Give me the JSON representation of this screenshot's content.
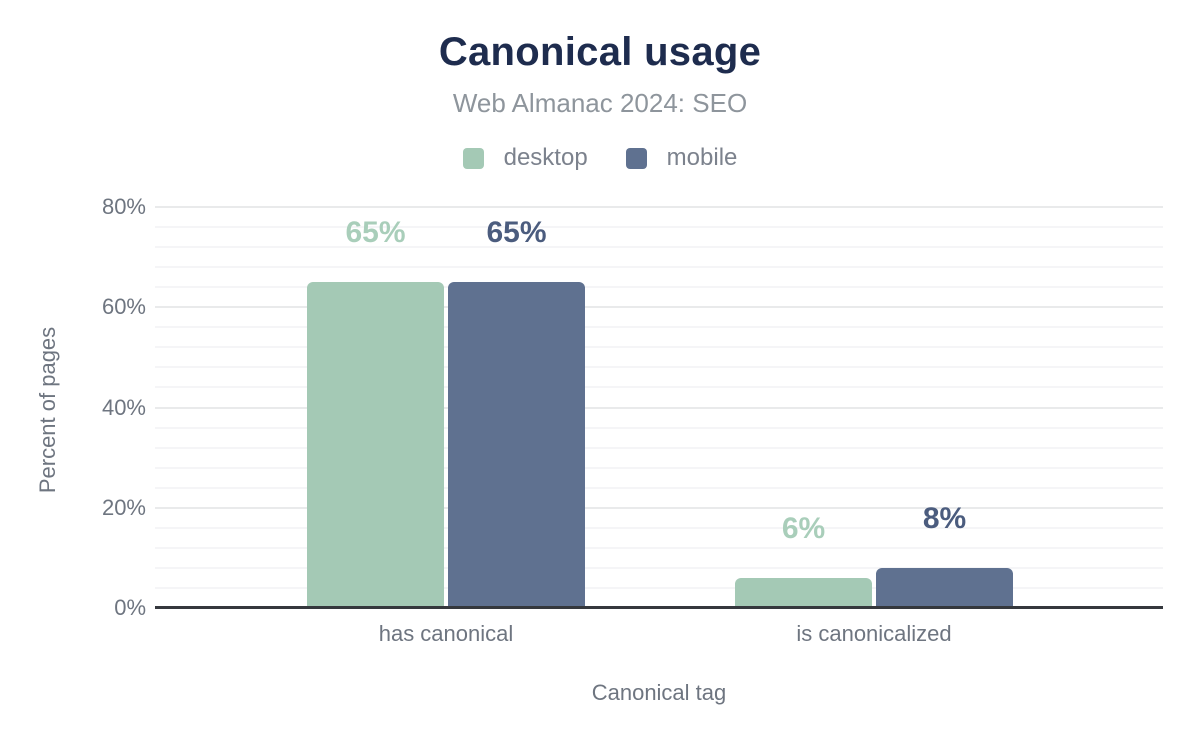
{
  "colors": {
    "title_text": "#1e2c4e",
    "subtitle_text": "#8e959c",
    "legend_text": "#7c828d",
    "axis_text": "#6e7580",
    "baseline": "#35383d",
    "gridline_major": "#e9eaeb",
    "gridline_minor": "#f5f5f7",
    "desktop": "#a4c9b5",
    "mobile": "#5f7190"
  },
  "chart_data": {
    "type": "bar",
    "title": "Canonical usage",
    "subtitle": "Web Almanac 2024: SEO",
    "categories": [
      "has canonical",
      "is canonicalized"
    ],
    "series": [
      {
        "name": "desktop",
        "values": [
          65,
          6
        ],
        "labels": [
          "65%",
          "6%"
        ],
        "color": "#a4c9b5",
        "label_color": "#a9ceba"
      },
      {
        "name": "mobile",
        "values": [
          65,
          8
        ],
        "labels": [
          "65%",
          "8%"
        ],
        "color": "#5f7190",
        "label_color": "#4b5c7e"
      }
    ],
    "xlabel": "Canonical tag",
    "ylabel": "Percent of pages",
    "ylim": [
      0,
      80
    ],
    "y_major_step": 20,
    "y_minor_step": 4,
    "y_ticks": [
      {
        "value": 0,
        "label": "0%"
      },
      {
        "value": 20,
        "label": "20%"
      },
      {
        "value": 40,
        "label": "40%"
      },
      {
        "value": 60,
        "label": "60%"
      },
      {
        "value": 80,
        "label": "80%"
      }
    ],
    "grid": true,
    "legend_position": "top"
  }
}
